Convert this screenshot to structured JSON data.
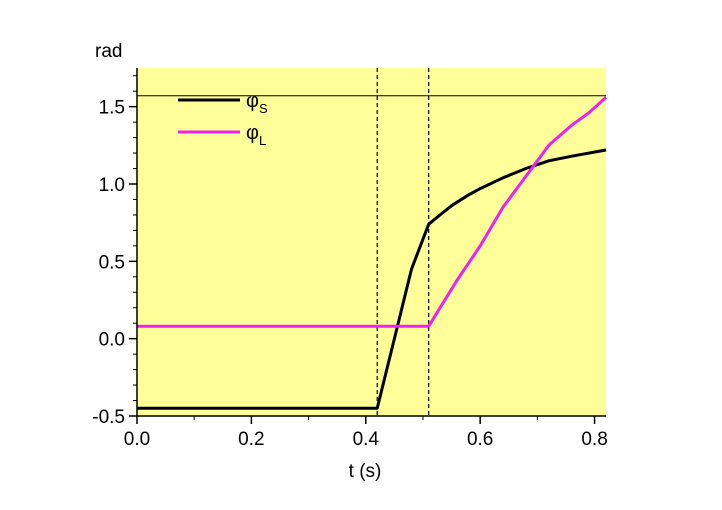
{
  "chart_data": {
    "type": "line",
    "title": "",
    "xlabel": "t (s)",
    "ylabel": "rad",
    "xlim": [
      0.0,
      0.82
    ],
    "ylim": [
      -0.5,
      1.75
    ],
    "x_ticks": [
      0.0,
      0.2,
      0.4,
      0.6,
      0.8
    ],
    "x_tick_labels": [
      "0.0",
      "0.2",
      "0.4",
      "0.6",
      "0.8"
    ],
    "y_ticks": [
      -0.5,
      0.0,
      0.5,
      1.0,
      1.5
    ],
    "y_tick_labels": [
      "-0.5",
      "0.0",
      "0.5",
      "1.0",
      "1.5"
    ],
    "grid": false,
    "background_color": "#ffff99",
    "legend_placement": "top-left",
    "series": [
      {
        "name": "φ",
        "subscript": "S",
        "color": "#000000",
        "points": [
          [
            0.0,
            -0.45
          ],
          [
            0.42,
            -0.45
          ],
          [
            0.45,
            0.0
          ],
          [
            0.48,
            0.45
          ],
          [
            0.51,
            0.74
          ],
          [
            0.53,
            0.8
          ],
          [
            0.55,
            0.86
          ],
          [
            0.58,
            0.93
          ],
          [
            0.6,
            0.97
          ],
          [
            0.64,
            1.04
          ],
          [
            0.68,
            1.1
          ],
          [
            0.72,
            1.15
          ],
          [
            0.76,
            1.18
          ],
          [
            0.82,
            1.22
          ]
        ]
      },
      {
        "name": "φ",
        "subscript": "L",
        "color": "#ee22ee",
        "points": [
          [
            0.0,
            0.08
          ],
          [
            0.51,
            0.08
          ],
          [
            0.53,
            0.2
          ],
          [
            0.56,
            0.38
          ],
          [
            0.6,
            0.6
          ],
          [
            0.64,
            0.85
          ],
          [
            0.68,
            1.05
          ],
          [
            0.72,
            1.25
          ],
          [
            0.76,
            1.38
          ],
          [
            0.79,
            1.46
          ],
          [
            0.82,
            1.56
          ]
        ]
      }
    ],
    "reference_lines": {
      "horizontal": [
        1.5708
      ],
      "vertical_dashed": [
        0.42,
        0.51
      ]
    }
  }
}
